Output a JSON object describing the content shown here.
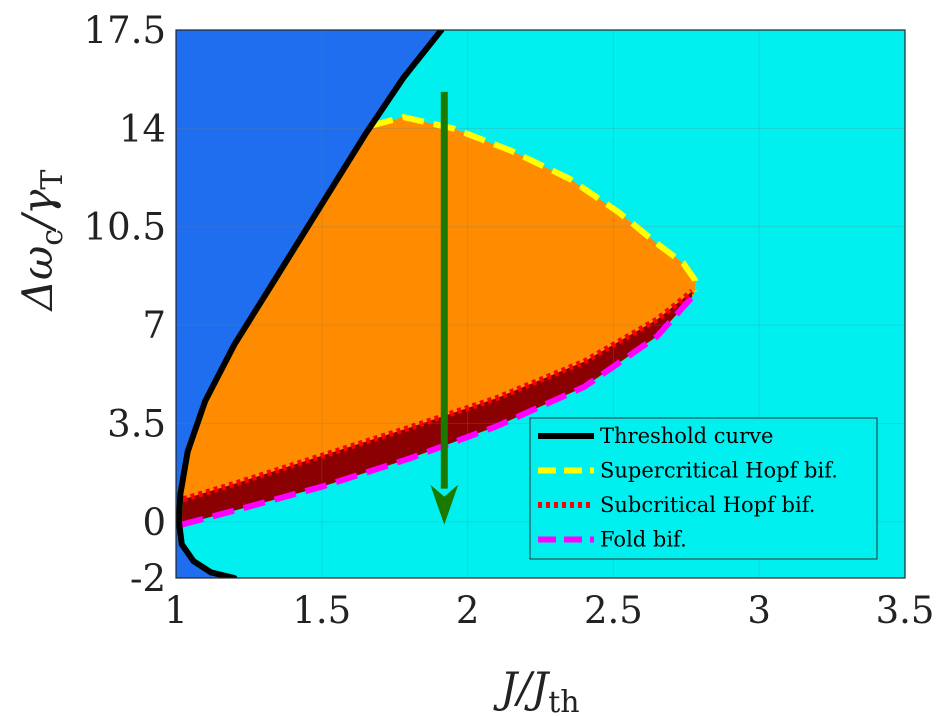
{
  "chart_data": {
    "type": "area",
    "title": "",
    "xlabel": {
      "main": "J/J",
      "sub": "th"
    },
    "ylabel": {
      "main": "Δω",
      "sub1": "c",
      "mid": "/γ",
      "sub2": "T"
    },
    "xlim": [
      1,
      3.5
    ],
    "ylim": [
      -2,
      17.5
    ],
    "x_ticks": [
      1,
      1.5,
      2,
      2.5,
      3,
      3.5
    ],
    "x_tick_labels": [
      "1",
      "1.5",
      "2",
      "2.5",
      "3",
      "3.5"
    ],
    "y_ticks": [
      -2,
      0,
      3.5,
      7,
      10.5,
      14,
      17.5
    ],
    "y_tick_labels": [
      "-2",
      "0",
      "3.5",
      "7",
      "10.5",
      "14",
      "17.5"
    ],
    "grid": true,
    "legend_position": "bottom-right",
    "colors": {
      "below_threshold": "#1f6ef0",
      "above_threshold": "#00f0f0",
      "instability_region": "#ff8c00",
      "bistable_region": "#8b0000",
      "arrow": "#1a7a00"
    },
    "series": [
      {
        "name": "Threshold curve",
        "style": "solid",
        "color": "#000000",
        "x": [
          1.2,
          1.12,
          1.06,
          1.02,
          1.01,
          1.015,
          1.04,
          1.1,
          1.2,
          1.35,
          1.5,
          1.65,
          1.78,
          1.91
        ],
        "y": [
          -2.0,
          -1.8,
          -1.4,
          -0.8,
          0.0,
          1.0,
          2.5,
          4.3,
          6.3,
          8.8,
          11.3,
          13.8,
          15.8,
          17.5
        ]
      },
      {
        "name": "Supercritical Hopf bif.",
        "style": "dashed",
        "color": "#ffff00",
        "x": [
          1.67,
          1.78,
          1.95,
          2.15,
          2.35,
          2.52,
          2.65,
          2.74,
          2.78,
          2.78
        ],
        "y": [
          14.1,
          14.4,
          14.0,
          13.2,
          12.2,
          11.0,
          9.9,
          9.2,
          8.6,
          8.2
        ]
      },
      {
        "name": "Subcritical Hopf bif.",
        "style": "dotted",
        "color": "#ff0000",
        "x": [
          1.025,
          1.2,
          1.5,
          1.8,
          2.1,
          2.4,
          2.65,
          2.77
        ],
        "y": [
          0.8,
          1.35,
          2.35,
          3.35,
          4.4,
          5.7,
          7.2,
          8.2
        ]
      },
      {
        "name": "Fold bif.",
        "style": "dashed",
        "color": "#ff00ff",
        "x": [
          1.02,
          1.2,
          1.5,
          1.8,
          2.1,
          2.4,
          2.65,
          2.77
        ],
        "y": [
          -0.1,
          0.4,
          1.25,
          2.25,
          3.4,
          4.8,
          6.6,
          8.0
        ]
      }
    ],
    "arrow": {
      "x": 1.92,
      "y_start": 15.3,
      "y_end": -0.1
    }
  }
}
